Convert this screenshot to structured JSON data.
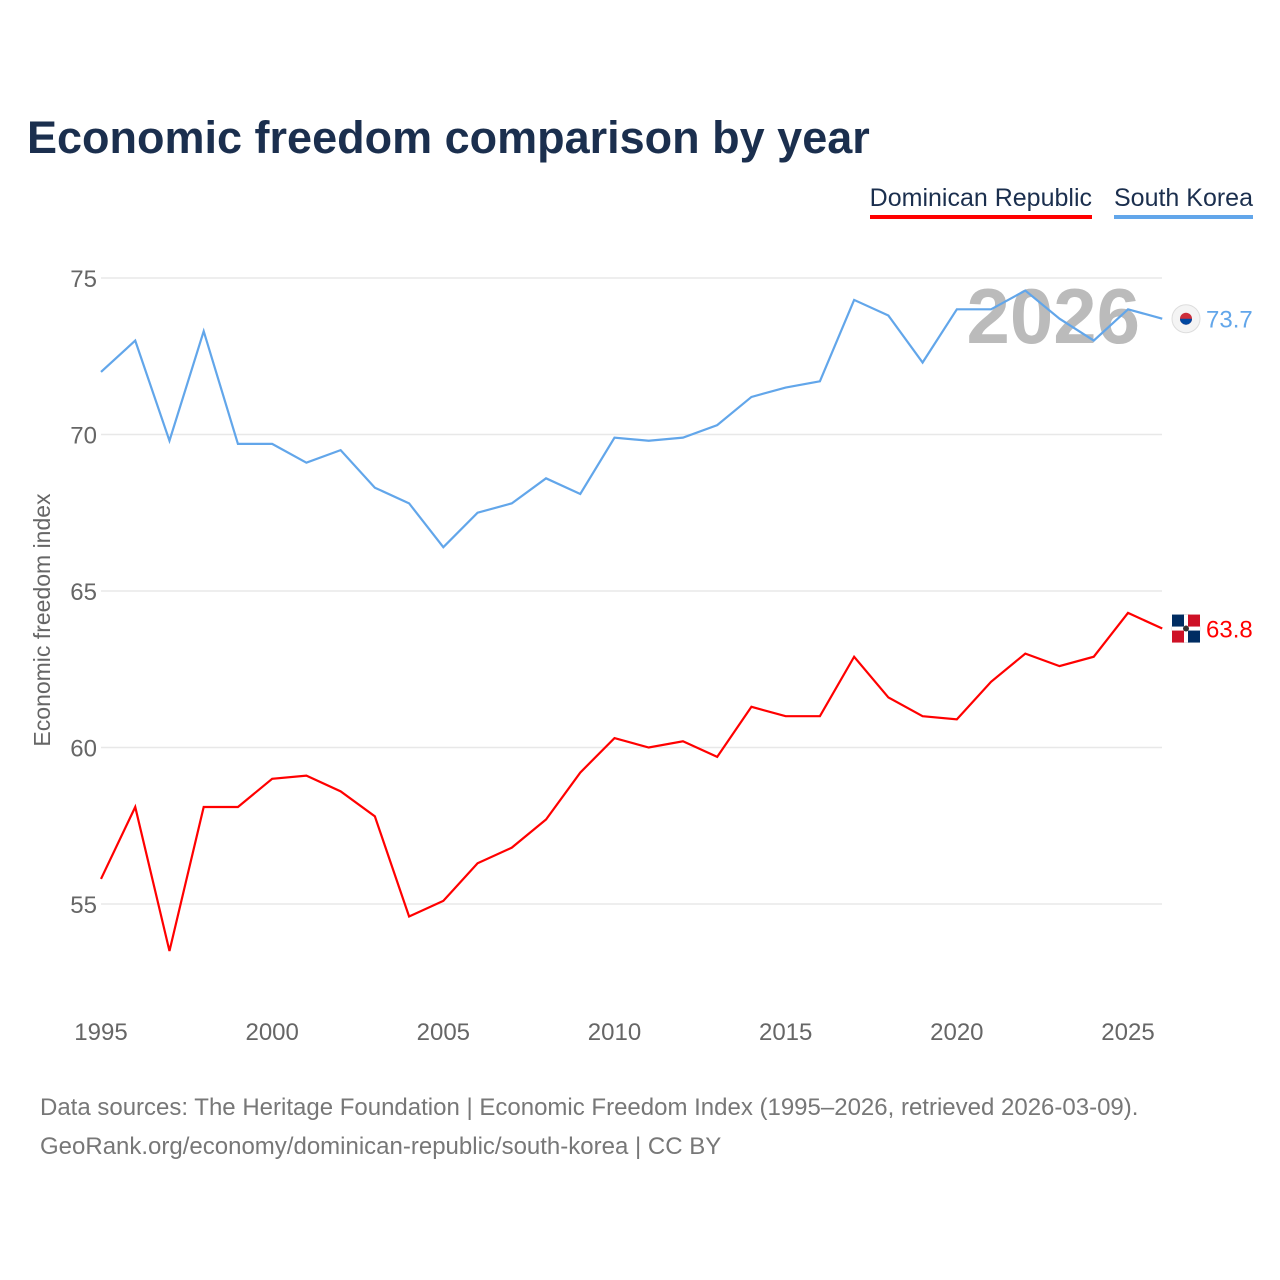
{
  "title": "Economic freedom comparison by year",
  "source_line1": "Data sources: The Heritage Foundation | Economic Freedom Index (1995–2026, retrieved 2026-03-09).",
  "source_line2": "GeoRank.org/economy/dominican-republic/south-korea | CC BY",
  "chart_data": {
    "type": "line",
    "title": "Economic freedom comparison by year",
    "ylabel": "Economic freedom index",
    "xlabel": "",
    "ylim": [
      51.5,
      76
    ],
    "xlim": [
      1995,
      2026
    ],
    "yticks": [
      55,
      60,
      65,
      70,
      75
    ],
    "xticks": [
      1995,
      2000,
      2005,
      2010,
      2015,
      2020,
      2025
    ],
    "grid": true,
    "legend_position": "top-right",
    "watermark_year": "2026",
    "x": [
      1995,
      1996,
      1997,
      1998,
      1999,
      2000,
      2001,
      2002,
      2003,
      2004,
      2005,
      2006,
      2007,
      2008,
      2009,
      2010,
      2011,
      2012,
      2013,
      2014,
      2015,
      2016,
      2017,
      2018,
      2019,
      2020,
      2021,
      2022,
      2023,
      2024,
      2025,
      2026
    ],
    "series": [
      {
        "name": "Dominican Republic",
        "color": "#ff0000",
        "end_label": "63.8",
        "values": [
          55.8,
          58.1,
          53.5,
          58.1,
          58.1,
          59.0,
          59.1,
          58.6,
          57.8,
          54.6,
          55.1,
          56.3,
          56.8,
          57.7,
          59.2,
          60.3,
          60.0,
          60.2,
          59.7,
          61.3,
          61.0,
          61.0,
          62.9,
          61.6,
          61.0,
          60.9,
          62.1,
          63.0,
          62.6,
          62.9,
          64.3,
          63.8
        ]
      },
      {
        "name": "South Korea",
        "color": "#62a6ea",
        "end_label": "73.7",
        "values": [
          72.0,
          73.0,
          69.8,
          73.3,
          69.7,
          69.7,
          69.1,
          69.5,
          68.3,
          67.8,
          66.4,
          67.5,
          67.8,
          68.6,
          68.1,
          69.9,
          69.8,
          69.9,
          70.3,
          71.2,
          71.5,
          71.7,
          74.3,
          73.8,
          72.3,
          74.0,
          74.0,
          74.6,
          73.7,
          73.0,
          74.0,
          73.7
        ]
      }
    ]
  }
}
